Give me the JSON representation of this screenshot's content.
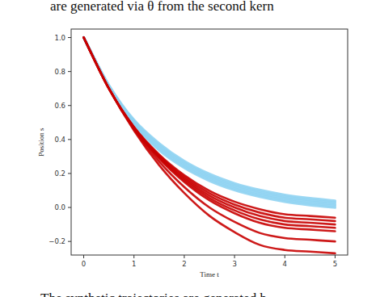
{
  "page_text": {
    "above": "are generated via θ from the second kern",
    "below": "The synthetic trajectories are generated b"
  },
  "chart_data": {
    "type": "line",
    "xlabel": "Time t",
    "ylabel": "Position s",
    "x": [
      0,
      0.5,
      1,
      1.5,
      2,
      2.5,
      3,
      3.5,
      4,
      4.5,
      5
    ],
    "xlim": [
      -0.25,
      5.25
    ],
    "ylim": [
      -0.28,
      1.05
    ],
    "xticks": [
      0,
      1,
      2,
      3,
      4,
      5
    ],
    "yticks": [
      {
        "value": -0.2,
        "label": "−0.2"
      },
      {
        "value": 0.0,
        "label": "0.0"
      },
      {
        "value": 0.2,
        "label": "0.2"
      },
      {
        "value": 0.4,
        "label": "0.4"
      },
      {
        "value": 0.6,
        "label": "0.6"
      },
      {
        "value": 0.8,
        "label": "0.8"
      },
      {
        "value": 1.0,
        "label": "1.0"
      }
    ],
    "grid": false,
    "series": [
      {
        "color": "#8fd3f2",
        "values": [
          1.0,
          0.706,
          0.489,
          0.337,
          0.233,
          0.157,
          0.102,
          0.063,
          0.034,
          0.014,
          -0.001
        ]
      },
      {
        "color": "#8fd3f2",
        "values": [
          1.0,
          0.71,
          0.495,
          0.347,
          0.243,
          0.167,
          0.112,
          0.073,
          0.044,
          0.024,
          0.009
        ]
      },
      {
        "color": "#8fd3f2",
        "values": [
          1.0,
          0.713,
          0.502,
          0.357,
          0.253,
          0.177,
          0.122,
          0.083,
          0.054,
          0.034,
          0.019
        ]
      },
      {
        "color": "#8fd3f2",
        "values": [
          1.0,
          0.716,
          0.509,
          0.367,
          0.263,
          0.187,
          0.132,
          0.093,
          0.064,
          0.044,
          0.029
        ]
      },
      {
        "color": "#8fd3f2",
        "values": [
          1.0,
          0.72,
          0.515,
          0.377,
          0.273,
          0.197,
          0.142,
          0.103,
          0.074,
          0.054,
          0.039
        ]
      },
      {
        "color": "#c80000",
        "values": [
          1.0,
          0.7,
          0.474,
          0.312,
          0.19,
          0.098,
          0.034,
          -0.01,
          -0.04,
          -0.05,
          -0.06
        ]
      },
      {
        "color": "#c80000",
        "values": [
          1.0,
          0.7,
          0.472,
          0.306,
          0.18,
          0.084,
          0.017,
          -0.03,
          -0.06,
          -0.07,
          -0.08
        ]
      },
      {
        "color": "#c80000",
        "values": [
          1.0,
          0.7,
          0.47,
          0.3,
          0.17,
          0.07,
          0.0,
          -0.05,
          -0.08,
          -0.09,
          -0.1
        ]
      },
      {
        "color": "#c80000",
        "values": [
          1.0,
          0.7,
          0.468,
          0.294,
          0.16,
          0.056,
          -0.017,
          -0.07,
          -0.1,
          -0.11,
          -0.12
        ]
      },
      {
        "color": "#c80000",
        "values": [
          1.0,
          0.7,
          0.466,
          0.288,
          0.15,
          0.042,
          -0.034,
          -0.09,
          -0.12,
          -0.13,
          -0.14
        ]
      },
      {
        "color": "#c80000",
        "values": [
          1.0,
          0.7,
          0.46,
          0.27,
          0.12,
          0.0,
          -0.085,
          -0.15,
          -0.18,
          -0.19,
          -0.2
        ]
      },
      {
        "color": "#c80000",
        "values": [
          1.0,
          0.7,
          0.453,
          0.249,
          0.085,
          -0.049,
          -0.145,
          -0.22,
          -0.25,
          -0.26,
          -0.27
        ]
      }
    ]
  }
}
